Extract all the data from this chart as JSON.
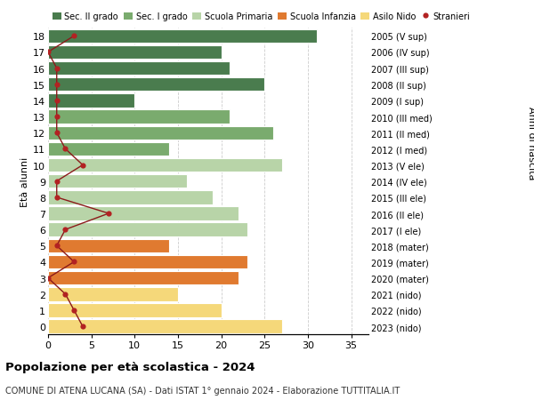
{
  "ages": [
    18,
    17,
    16,
    15,
    14,
    13,
    12,
    11,
    10,
    9,
    8,
    7,
    6,
    5,
    4,
    3,
    2,
    1,
    0
  ],
  "right_labels": [
    "2005 (V sup)",
    "2006 (IV sup)",
    "2007 (III sup)",
    "2008 (II sup)",
    "2009 (I sup)",
    "2010 (III med)",
    "2011 (II med)",
    "2012 (I med)",
    "2013 (V ele)",
    "2014 (IV ele)",
    "2015 (III ele)",
    "2016 (II ele)",
    "2017 (I ele)",
    "2018 (mater)",
    "2019 (mater)",
    "2020 (mater)",
    "2021 (nido)",
    "2022 (nido)",
    "2023 (nido)"
  ],
  "bar_values": [
    31,
    20,
    21,
    25,
    10,
    21,
    26,
    14,
    27,
    16,
    19,
    22,
    23,
    14,
    23,
    22,
    15,
    20,
    27
  ],
  "bar_colors": [
    "#4a7c4e",
    "#4a7c4e",
    "#4a7c4e",
    "#4a7c4e",
    "#4a7c4e",
    "#7aab6e",
    "#7aab6e",
    "#7aab6e",
    "#b8d4a8",
    "#b8d4a8",
    "#b8d4a8",
    "#b8d4a8",
    "#b8d4a8",
    "#e07a30",
    "#e07a30",
    "#e07a30",
    "#f5d87a",
    "#f5d87a",
    "#f5d87a"
  ],
  "stranieri_values": [
    3,
    0,
    1,
    1,
    1,
    1,
    1,
    2,
    4,
    1,
    1,
    7,
    2,
    1,
    3,
    0,
    2,
    3,
    4
  ],
  "legend_labels": [
    "Sec. II grado",
    "Sec. I grado",
    "Scuola Primaria",
    "Scuola Infanzia",
    "Asilo Nido",
    "Stranieri"
  ],
  "legend_colors": [
    "#4a7c4e",
    "#7aab6e",
    "#b8d4a8",
    "#e07a30",
    "#f5d87a",
    "#b22222"
  ],
  "title": "Popolazione per età scolastica - 2024",
  "subtitle": "COMUNE DI ATENA LUCANA (SA) - Dati ISTAT 1° gennaio 2024 - Elaborazione TUTTITALIA.IT",
  "xlabel_right": "Anni di nascita",
  "ylabel": "Età alunni",
  "xlim": [
    0,
    37
  ],
  "background_color": "#ffffff",
  "bar_edge_color": "white",
  "grid_color": "#cccccc",
  "stranieri_line_color": "#8b1a1a",
  "stranieri_dot_color": "#b22222"
}
